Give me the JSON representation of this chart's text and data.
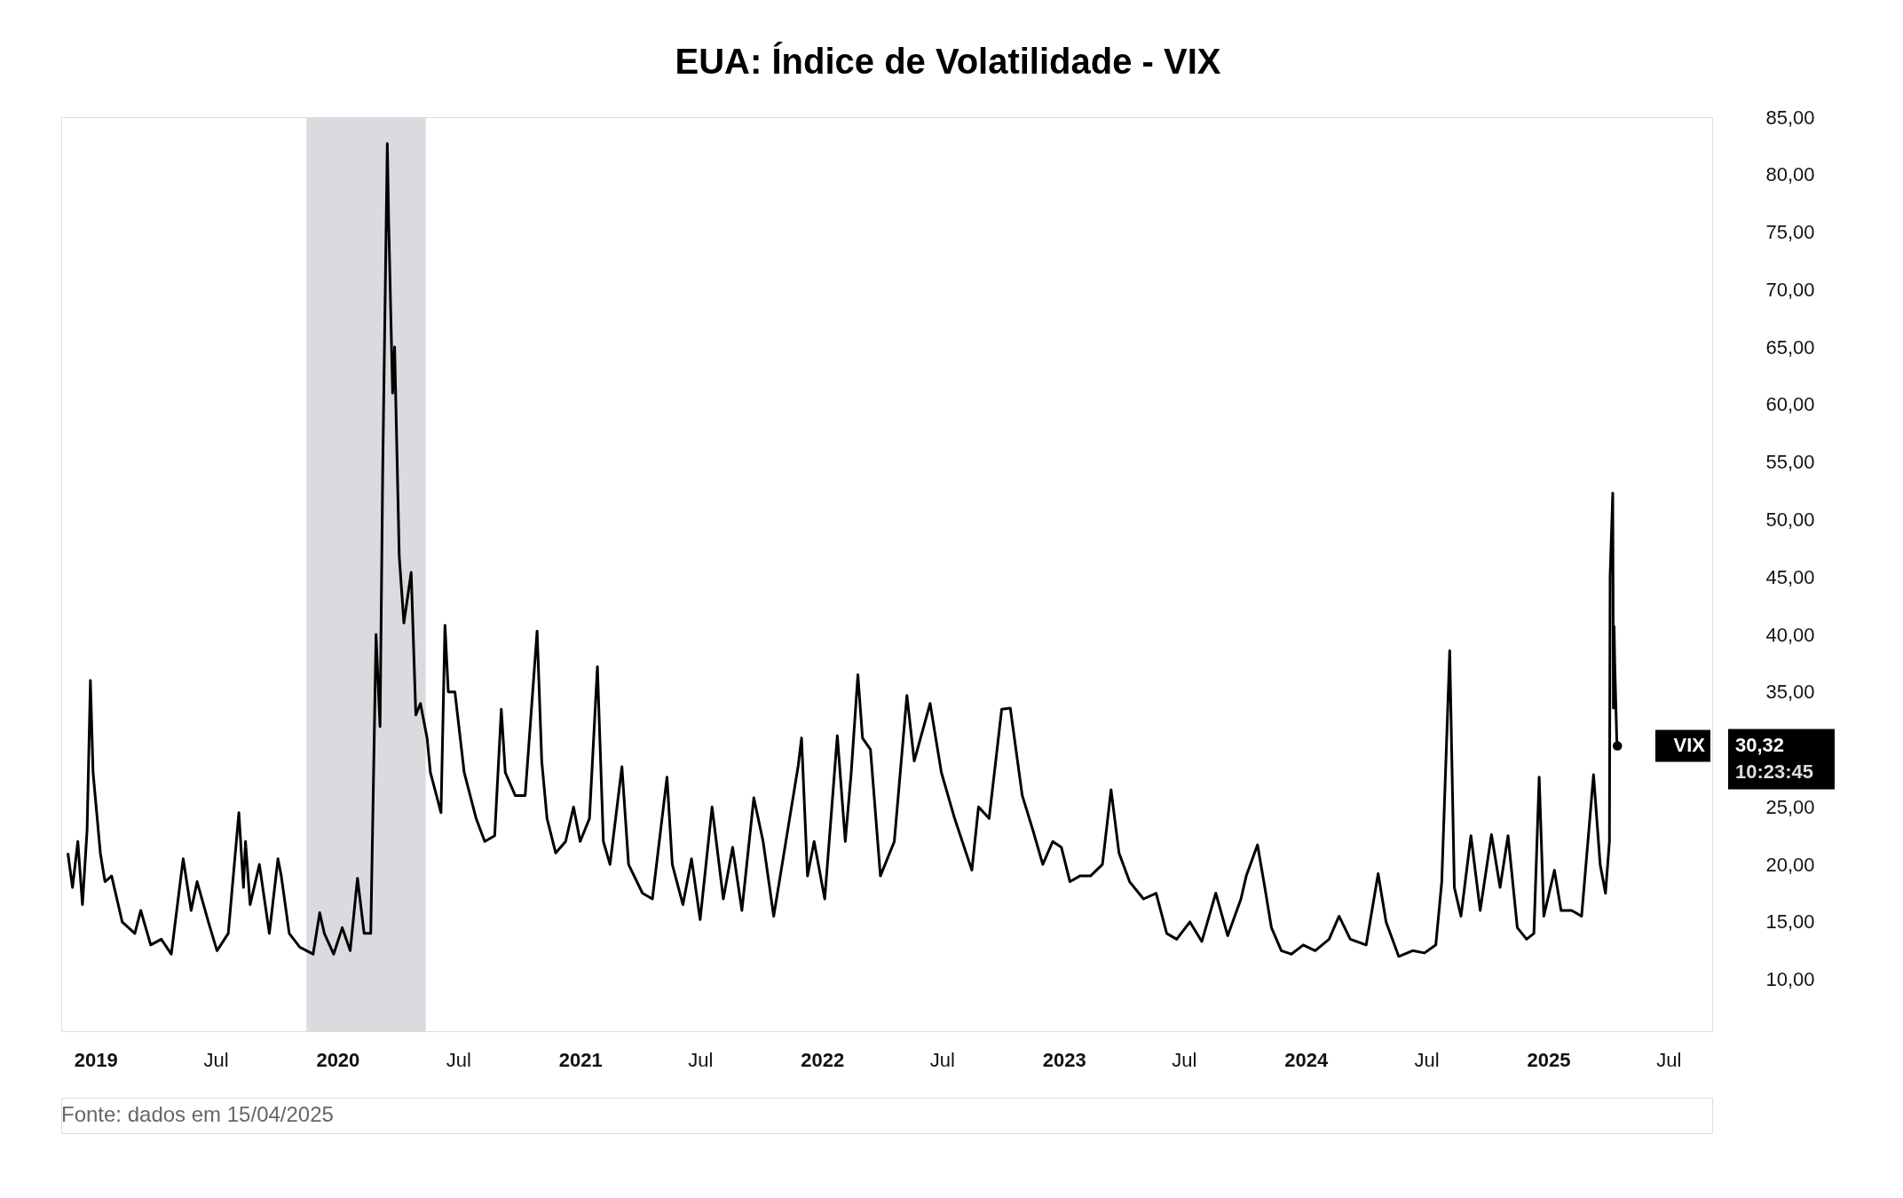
{
  "chart_data": {
    "type": "line",
    "title": "EUA: Índice de Volatilidade - VIX",
    "x": [
      "2018-11-20",
      "2018-11-27",
      "2018-12-05",
      "2018-12-12",
      "2018-12-19",
      "2018-12-24",
      "2018-12-28",
      "2019-01-08",
      "2019-01-15",
      "2019-01-25",
      "2019-02-10",
      "2019-03-01",
      "2019-03-10",
      "2019-03-25",
      "2019-04-10",
      "2019-04-25",
      "2019-05-13",
      "2019-05-25",
      "2019-06-03",
      "2019-06-20",
      "2019-07-03",
      "2019-07-20",
      "2019-08-05",
      "2019-08-12",
      "2019-08-15",
      "2019-08-22",
      "2019-09-05",
      "2019-09-20",
      "2019-10-03",
      "2019-10-08",
      "2019-10-20",
      "2019-11-05",
      "2019-11-25",
      "2019-12-05",
      "2019-12-12",
      "2019-12-26",
      "2020-01-08",
      "2020-01-20",
      "2020-01-31",
      "2020-02-10",
      "2020-02-20",
      "2020-02-28",
      "2020-03-05",
      "2020-03-09",
      "2020-03-16",
      "2020-03-18",
      "2020-03-24",
      "2020-03-27",
      "2020-04-03",
      "2020-04-10",
      "2020-04-21",
      "2020-04-28",
      "2020-05-05",
      "2020-05-15",
      "2020-05-20",
      "2020-06-05",
      "2020-06-11",
      "2020-06-16",
      "2020-06-26",
      "2020-07-10",
      "2020-07-28",
      "2020-08-10",
      "2020-08-25",
      "2020-09-04",
      "2020-09-10",
      "2020-09-25",
      "2020-10-10",
      "2020-10-28",
      "2020-11-04",
      "2020-11-12",
      "2020-11-25",
      "2020-12-10",
      "2020-12-22",
      "2021-01-01",
      "2021-01-15",
      "2021-01-27",
      "2021-02-05",
      "2021-02-15",
      "2021-03-05",
      "2021-03-15",
      "2021-04-05",
      "2021-04-20",
      "2021-05-12",
      "2021-05-20",
      "2021-06-05",
      "2021-06-18",
      "2021-07-01",
      "2021-07-19",
      "2021-08-05",
      "2021-08-19",
      "2021-09-02",
      "2021-09-20",
      "2021-10-04",
      "2021-10-20",
      "2021-11-26",
      "2021-12-01",
      "2021-12-10",
      "2021-12-20",
      "2022-01-05",
      "2022-01-24",
      "2022-02-05",
      "2022-02-14",
      "2022-02-24",
      "2022-03-03",
      "2022-03-15",
      "2022-03-30",
      "2022-04-20",
      "2022-05-09",
      "2022-05-20",
      "2022-06-13",
      "2022-06-30",
      "2022-07-20",
      "2022-08-15",
      "2022-08-25",
      "2022-09-10",
      "2022-09-29",
      "2022-10-12",
      "2022-10-30",
      "2022-11-15",
      "2022-11-30",
      "2022-12-15",
      "2022-12-28",
      "2023-01-10",
      "2023-01-25",
      "2023-02-10",
      "2023-02-28",
      "2023-03-13",
      "2023-03-25",
      "2023-04-10",
      "2023-05-01",
      "2023-05-20",
      "2023-06-05",
      "2023-06-20",
      "2023-07-10",
      "2023-07-28",
      "2023-08-18",
      "2023-09-05",
      "2023-09-25",
      "2023-10-03",
      "2023-10-20",
      "2023-10-31",
      "2023-11-10",
      "2023-11-25",
      "2023-12-10",
      "2023-12-28",
      "2024-01-15",
      "2024-02-05",
      "2024-02-20",
      "2024-03-08",
      "2024-04-01",
      "2024-04-19",
      "2024-05-01",
      "2024-05-20",
      "2024-06-10",
      "2024-06-28",
      "2024-07-15",
      "2024-07-24",
      "2024-08-05",
      "2024-08-12",
      "2024-08-22",
      "2024-09-06",
      "2024-09-20",
      "2024-10-07",
      "2024-10-20",
      "2024-11-01",
      "2024-11-15",
      "2024-11-29",
      "2024-12-10",
      "2024-12-18",
      "2024-12-25",
      "2025-01-10",
      "2025-01-20",
      "2025-02-05",
      "2025-02-20",
      "2025-03-10",
      "2025-03-20",
      "2025-03-28",
      "2025-04-03",
      "2025-04-04",
      "2025-04-08",
      "2025-04-09",
      "2025-04-10",
      "2025-04-11",
      "2025-04-14",
      "2025-04-15"
    ],
    "series": [
      {
        "name": "VIX",
        "color": "#000000",
        "values": [
          21,
          18,
          22,
          16.5,
          23,
          36,
          28,
          21,
          18.5,
          19,
          15,
          14,
          16,
          13,
          13.5,
          12.2,
          20.5,
          16,
          18.5,
          15,
          12.5,
          14,
          24.5,
          18,
          22,
          16.5,
          20,
          14,
          20.5,
          19,
          14,
          12.8,
          12.2,
          15.8,
          14,
          12.2,
          14.5,
          12.5,
          18.8,
          14,
          14,
          40,
          32,
          54,
          82.7,
          76,
          61,
          65,
          46.8,
          41,
          45.4,
          33,
          34,
          31,
          28,
          24.5,
          40.8,
          35,
          35,
          28,
          24,
          22,
          22.5,
          33.5,
          28,
          26,
          26,
          40.3,
          29,
          24,
          21,
          22,
          25,
          22,
          24,
          37.2,
          22,
          20,
          28.5,
          20,
          17.5,
          17,
          27.6,
          20,
          16.5,
          20.5,
          15.2,
          25,
          17,
          21.5,
          16,
          25.8,
          22,
          15.5,
          28.6,
          31,
          19,
          22,
          17,
          31.2,
          22,
          28,
          36.5,
          31,
          30,
          19,
          22,
          34.7,
          29,
          34,
          28,
          24,
          19.5,
          25,
          24,
          33.5,
          33.6,
          26,
          23,
          20,
          22,
          21.5,
          18.5,
          19,
          19,
          20,
          26.5,
          21,
          18.5,
          17,
          17.5,
          14,
          13.5,
          15,
          13.3,
          17.5,
          13.8,
          17,
          19,
          21.7,
          18,
          14.5,
          12.5,
          12.2,
          13,
          12.5,
          13.5,
          15.5,
          13.5,
          13,
          19.2,
          15,
          12,
          12.5,
          12.3,
          13,
          18.5,
          38.6,
          18,
          15.5,
          22.5,
          16,
          22.6,
          18,
          22.5,
          14.5,
          13.5,
          14,
          27.6,
          15.5,
          19.5,
          16,
          16,
          15.5,
          27.8,
          20,
          17.5,
          22,
          45,
          52.3,
          33.6,
          40.7,
          37.5,
          30.9,
          30.32
        ]
      }
    ],
    "xlim": [
      "2018-11-10",
      "2025-09-05"
    ],
    "xticks": [
      {
        "value": "2019-01-01",
        "label": "2019"
      },
      {
        "value": "2019-07-01",
        "label": "Jul"
      },
      {
        "value": "2020-01-01",
        "label": "2020"
      },
      {
        "value": "2020-07-01",
        "label": "Jul"
      },
      {
        "value": "2021-01-01",
        "label": "2021"
      },
      {
        "value": "2021-07-01",
        "label": "Jul"
      },
      {
        "value": "2022-01-01",
        "label": "2022"
      },
      {
        "value": "2022-07-01",
        "label": "Jul"
      },
      {
        "value": "2023-01-01",
        "label": "2023"
      },
      {
        "value": "2023-07-01",
        "label": "Jul"
      },
      {
        "value": "2024-01-01",
        "label": "2024"
      },
      {
        "value": "2024-07-01",
        "label": "Jul"
      },
      {
        "value": "2025-01-01",
        "label": "2025"
      },
      {
        "value": "2025-07-01",
        "label": "Jul"
      }
    ],
    "ylim": [
      5.5,
      85
    ],
    "yticks": [
      {
        "value": 10,
        "label": "10,00"
      },
      {
        "value": 15,
        "label": "15,00"
      },
      {
        "value": 20,
        "label": "20,00"
      },
      {
        "value": 25,
        "label": "25,00"
      },
      {
        "value": 35,
        "label": "35,00"
      },
      {
        "value": 40,
        "label": "40,00"
      },
      {
        "value": 45,
        "label": "45,00"
      },
      {
        "value": 50,
        "label": "50,00"
      },
      {
        "value": 55,
        "label": "55,00"
      },
      {
        "value": 60,
        "label": "60,00"
      },
      {
        "value": 65,
        "label": "65,00"
      },
      {
        "value": 70,
        "label": "70,00"
      },
      {
        "value": 75,
        "label": "75,00"
      },
      {
        "value": 80,
        "label": "80,00"
      },
      {
        "value": 85,
        "label": "85,00"
      }
    ],
    "bands": [
      {
        "axis": "x",
        "from": "2019-11-15",
        "to": "2020-05-13",
        "label": null,
        "color": "#dadbdf"
      }
    ],
    "annotations": [
      "30,32\n10:23:45",
      "Fonte: dados em 15/04/2025"
    ],
    "line_style": "solid"
  }
}
